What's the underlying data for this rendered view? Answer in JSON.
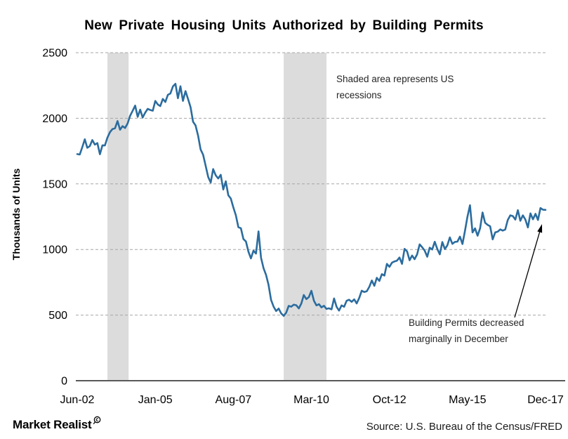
{
  "page": {
    "background": "#ffffff"
  },
  "annotations": {
    "recession_note": "Shaded area represents US recessions",
    "permits_note": "Building Permits decreased marginally in December"
  },
  "footer": {
    "brand": "Market Realist",
    "brand_icon": "magnifier-icon",
    "source": "Source: U.S. Bureau of the Census/FRED"
  },
  "colors": {
    "line": "#2b6c9e",
    "recession_band": "#dcdcdc",
    "gridline": "#a6a6a6",
    "axis": "#595959",
    "text": "#000000",
    "annotation_text": "#262626",
    "arrow": "#000000"
  },
  "chart_data": {
    "type": "line",
    "title": "New Private Housing Units Authorized by Building Permits",
    "xlabel": "",
    "ylabel": "Thousands of Units",
    "ylim": [
      0,
      2500
    ],
    "y_ticks": [
      0,
      500,
      1000,
      1500,
      2000,
      2500
    ],
    "x_ticks": [
      {
        "month_index": 0,
        "label": "Jun-02"
      },
      {
        "month_index": 31,
        "label": "Jan-05"
      },
      {
        "month_index": 62,
        "label": "Aug-07"
      },
      {
        "month_index": 93,
        "label": "Mar-10"
      },
      {
        "month_index": 124,
        "label": "Oct-12"
      },
      {
        "month_index": 155,
        "label": "May-15"
      },
      {
        "month_index": 186,
        "label": "Dec-17"
      }
    ],
    "frequency": "monthly",
    "start": "Jun-2002",
    "end": "Dec-2017",
    "grid": "horizontal-dashed",
    "legend": "none",
    "recession_bands_month_ranges": [
      [
        12.0,
        20.4
      ],
      [
        82.0,
        99.0
      ]
    ],
    "series": [
      {
        "name": "New Private Housing Units Authorized by Building Permits (thousands of units)",
        "values": [
          1727,
          1724,
          1780,
          1840,
          1775,
          1788,
          1834,
          1799,
          1811,
          1726,
          1794,
          1793,
          1853,
          1894,
          1918,
          1924,
          1979,
          1913,
          1940,
          1926,
          1960,
          2019,
          2057,
          2097,
          2011,
          2066,
          2006,
          2043,
          2072,
          2063,
          2058,
          2132,
          2105,
          2093,
          2148,
          2124,
          2179,
          2189,
          2243,
          2263,
          2153,
          2244,
          2133,
          2207,
          2147,
          2085,
          1973,
          1946,
          1869,
          1763,
          1722,
          1638,
          1553,
          1510,
          1613,
          1566,
          1541,
          1569,
          1457,
          1520,
          1413,
          1389,
          1322,
          1261,
          1170,
          1162,
          1080,
          1061,
          984,
          932,
          991,
          969,
          1138,
          937,
          857,
          805,
          730,
          615,
          564,
          531,
          550,
          513,
          494,
          518,
          570,
          564,
          580,
          575,
          551,
          589,
          653,
          622,
          637,
          685,
          610,
          574,
          583,
          559,
          571,
          547,
          552,
          544,
          627,
          563,
          534,
          574,
          563,
          609,
          617,
          601,
          620,
          589,
          630,
          686,
          676,
          682,
          715,
          764,
          723,
          784,
          760,
          812,
          801,
          890,
          868,
          900,
          909,
          915,
          939,
          890,
          1005,
          985,
          918,
          954,
          926,
          963,
          1039,
          1017,
          991,
          945,
          1014,
          1000,
          1059,
          1005,
          963,
          1057,
          1003,
          1031,
          1092,
          1043,
          1058,
          1060,
          1098,
          1042,
          1140,
          1250,
          1337,
          1130,
          1161,
          1105,
          1161,
          1282,
          1204,
          1188,
          1177,
          1077,
          1130,
          1136,
          1153,
          1144,
          1152,
          1225,
          1260,
          1255,
          1228,
          1300,
          1219,
          1260,
          1228,
          1168,
          1275,
          1230,
          1272,
          1225,
          1316,
          1303,
          1302
        ]
      }
    ]
  }
}
